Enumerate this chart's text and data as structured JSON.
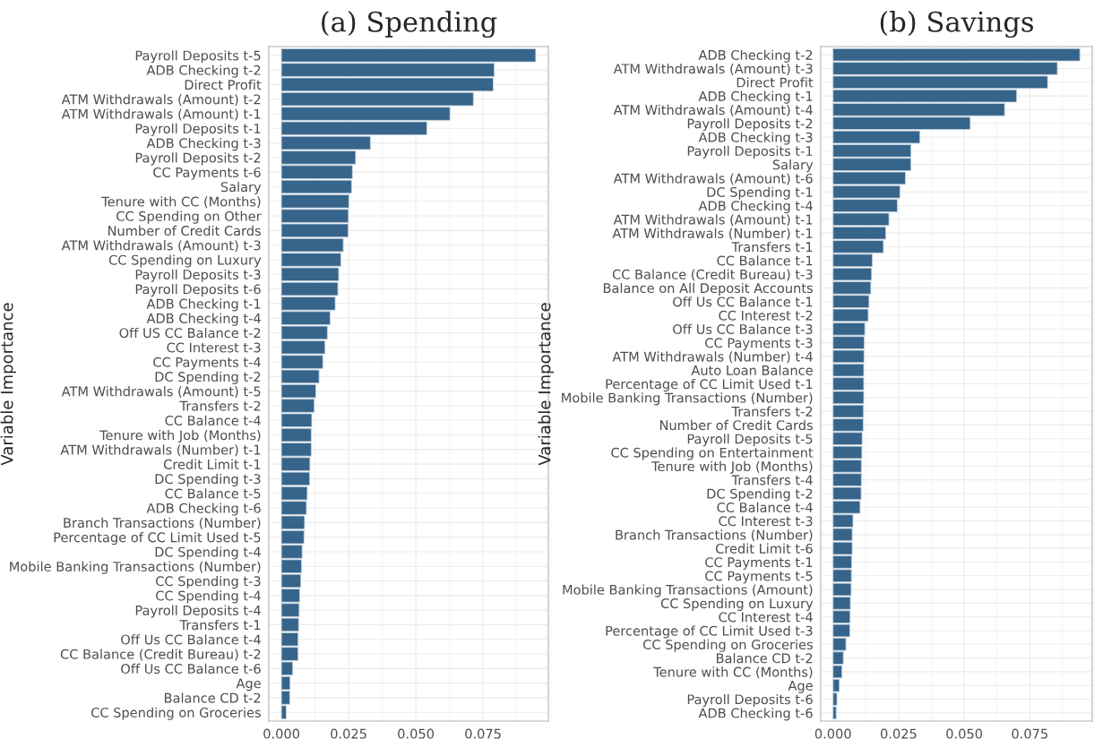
{
  "chart_data": [
    {
      "type": "bar",
      "orientation": "horizontal",
      "title": "(a) Spending",
      "ylabel": "Variable Importance",
      "color": "#36648b",
      "grid": true,
      "xlim": [
        -0.0047,
        0.0993
      ],
      "xticks": [
        {
          "value": 0,
          "label": "0.000"
        },
        {
          "value": 0.025,
          "label": "0.025"
        },
        {
          "value": 0.05,
          "label": "0.050"
        },
        {
          "value": 0.075,
          "label": "0.075"
        }
      ],
      "categories": [
        "Payroll Deposits t-5",
        "ADB Checking t-2",
        "Direct Profit",
        "ATM Withdrawals (Amount) t-2",
        "ATM Withdrawals (Amount) t-1",
        "Payroll Deposits t-1",
        "ADB Checking t-3",
        "Payroll Deposits t-2",
        "CC Payments t-6",
        "Salary",
        "Tenure with CC (Months)",
        "CC Spending on Other",
        "Number of Credit Cards",
        "ATM Withdrawals (Amount) t-3",
        "CC Spending on Luxury",
        "Payroll Deposits t-3",
        "Payroll Deposits t-6",
        "ADB Checking t-1",
        "ADB Checking t-4",
        "Off US CC Balance t-2",
        "CC Interest t-3",
        "CC Payments t-4",
        "DC Spending t-2",
        "ATM Withdrawals (Amount) t-5",
        "Transfers t-2",
        "CC Balance t-4",
        "Tenure with Job (Months)",
        "ATM Withdrawals (Number) t-1",
        "Credit Limit t-1",
        "DC Spending t-3",
        "CC Balance t-5",
        "ADB Checking t-6",
        "Branch Transactions (Number)",
        "Percentage of CC Limit Used t-5",
        "DC Spending t-4",
        "Mobile Banking Transactions (Number)",
        "CC Spending t-3",
        "CC Spending t-4",
        "Payroll Deposits t-4",
        "Transfers t-1",
        "Off Us CC Balance t-4",
        "CC Balance (Credit Bureau) t-2",
        "Off Us CC Balance t-6",
        "Age",
        "Balance CD t-2",
        "CC Spending on Groceries"
      ],
      "values": [
        0.0946,
        0.0792,
        0.0788,
        0.0714,
        0.0627,
        0.0541,
        0.0331,
        0.0276,
        0.0264,
        0.0261,
        0.0251,
        0.0249,
        0.0248,
        0.023,
        0.0221,
        0.0213,
        0.021,
        0.02,
        0.0181,
        0.0171,
        0.0162,
        0.0154,
        0.014,
        0.0128,
        0.0122,
        0.0113,
        0.0111,
        0.0111,
        0.0106,
        0.0105,
        0.0096,
        0.0093,
        0.0086,
        0.0084,
        0.0077,
        0.0075,
        0.0072,
        0.0068,
        0.0066,
        0.0064,
        0.0062,
        0.0062,
        0.0042,
        0.0032,
        0.0031,
        0.0018
      ]
    },
    {
      "type": "bar",
      "orientation": "horizontal",
      "title": "(b) Savings",
      "ylabel": "Variable Importance",
      "color": "#36648b",
      "grid": true,
      "xlim": [
        -0.0047,
        0.0988
      ],
      "xticks": [
        {
          "value": 0,
          "label": "0.000"
        },
        {
          "value": 0.025,
          "label": "0.025"
        },
        {
          "value": 0.05,
          "label": "0.050"
        },
        {
          "value": 0.075,
          "label": "0.075"
        }
      ],
      "categories": [
        "ADB Checking t-2",
        "ATM Withdrawals (Amount) t-3",
        "Direct Profit",
        "ADB Checking t-1",
        "ATM Withdrawals (Amount) t-4",
        "Payroll Deposits t-2",
        "ADB Checking t-3",
        "Payroll Deposits t-1",
        "Salary",
        "ATM Withdrawals (Amount) t-6",
        "DC Spending t-1",
        "ADB Checking t-4",
        "ATM Withdrawals (Amount) t-1",
        "ATM Withdrawals (Number) t-1",
        "Transfers t-1",
        "CC Balance t-1",
        "CC Balance (Credit Bureau) t-3",
        "Balance on All Deposit Accounts",
        "Off Us CC Balance t-1",
        "CC Interest t-2",
        "Off Us CC Balance t-3",
        "CC Payments t-3",
        "ATM Withdrawals (Number) t-4",
        "Auto Loan Balance",
        "Percentage of CC Limit Used t-1",
        "Mobile Banking Transactions (Number)",
        "Transfers t-2",
        "Number of Credit Cards",
        "Payroll Deposits t-5",
        "CC Spending on Entertainment",
        "Tenure with Job (Months)",
        "Transfers t-4",
        "DC Spending t-2",
        "CC Balance t-4",
        "CC Interest t-3",
        "Branch Transactions (Number)",
        "Credit Limit t-6",
        "CC Payments t-1",
        "CC Payments t-5",
        "Mobile Banking Transactions (Amount)",
        "CC Spending on Luxury",
        "CC Interest t-4",
        "Percentage of CC Limit Used t-3",
        "CC Spending on Groceries",
        "Balance CD t-2",
        "Tenure with CC (Months)",
        "Age",
        "Payroll Deposits t-6",
        "ADB Checking t-6"
      ],
      "values": [
        0.0941,
        0.0855,
        0.0818,
        0.07,
        0.0654,
        0.0523,
        0.0331,
        0.0297,
        0.0297,
        0.0276,
        0.0255,
        0.0245,
        0.0213,
        0.0201,
        0.0192,
        0.015,
        0.0147,
        0.0144,
        0.0137,
        0.0134,
        0.0121,
        0.0119,
        0.0118,
        0.0117,
        0.0117,
        0.0117,
        0.0116,
        0.0115,
        0.0111,
        0.011,
        0.0108,
        0.0108,
        0.0107,
        0.0103,
        0.0076,
        0.0073,
        0.0073,
        0.0071,
        0.007,
        0.0069,
        0.0066,
        0.0065,
        0.0064,
        0.0049,
        0.0039,
        0.0034,
        0.0024,
        0.0015,
        0.0012
      ]
    }
  ]
}
